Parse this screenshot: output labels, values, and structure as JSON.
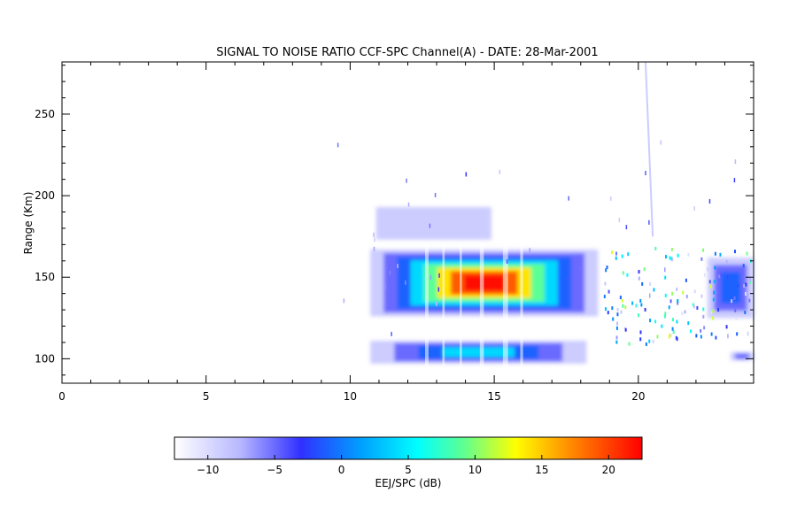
{
  "chart_data": {
    "type": "heatmap",
    "title": "SIGNAL TO NOISE RATIO CCF-SPC Channel(A) - DATE: 28-Mar-2001",
    "xlabel": "",
    "ylabel": "Range (Km)",
    "xlim": [
      0,
      24
    ],
    "ylim": [
      85,
      282
    ],
    "x_ticks": [
      0,
      5,
      10,
      15,
      20
    ],
    "y_ticks": [
      100,
      150,
      200,
      250
    ],
    "x_minor_step": 1,
    "y_minor_step": 10,
    "grid": false,
    "colorbar": {
      "label": "EEJ/SPC (dB)",
      "range": [
        -12.5,
        22.5
      ],
      "ticks": [
        -10,
        -5,
        0,
        5,
        10,
        15,
        20
      ],
      "colors": [
        "#ffffff",
        "#3030ff",
        "#00ffff",
        "#ffff00",
        "#ff0000"
      ]
    },
    "regions": [
      {
        "name": "main-layer",
        "x": [
          10.7,
          18.6
        ],
        "y": [
          126,
          167
        ],
        "peak_snr": 22
      },
      {
        "name": "lower-layer",
        "x": [
          10.7,
          18.2
        ],
        "y": [
          97,
          111
        ],
        "peak_snr": 5
      },
      {
        "name": "upper-echo",
        "x": [
          10.9,
          14.9
        ],
        "y": [
          173,
          193
        ],
        "peak_snr": -7
      },
      {
        "name": "evening-layer",
        "x": [
          22.4,
          24
        ],
        "y": [
          125,
          162
        ],
        "peak_snr": 0
      },
      {
        "name": "evening-lower",
        "x": [
          23.2,
          24
        ],
        "y": [
          99,
          104
        ],
        "peak_snr": -5
      }
    ]
  }
}
